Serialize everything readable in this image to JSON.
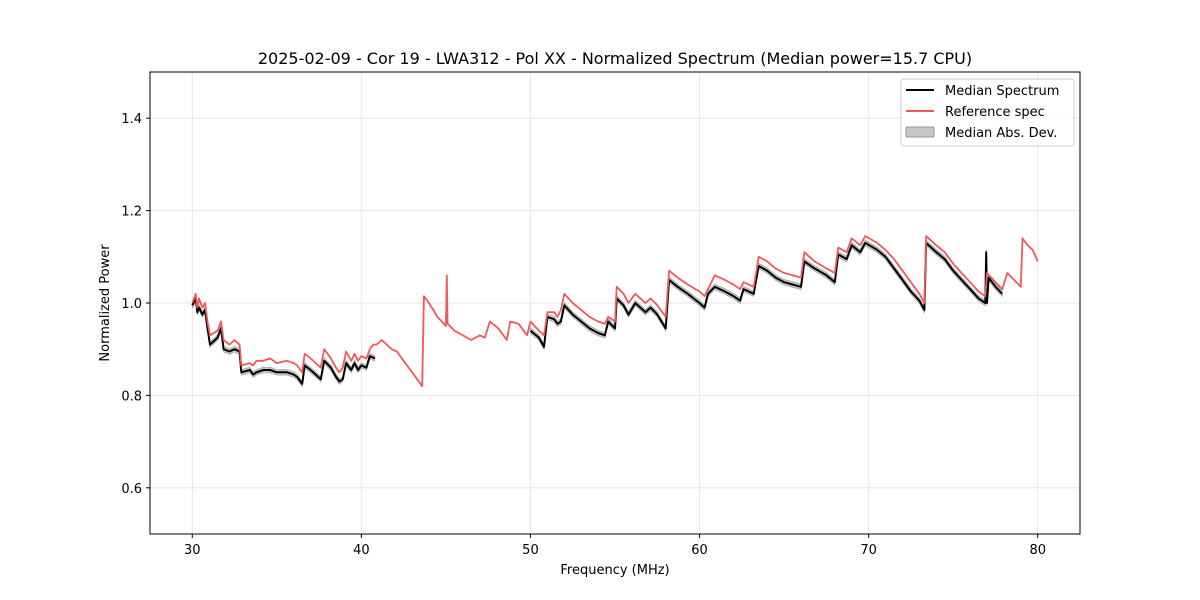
{
  "chart_data": {
    "type": "line",
    "title": "2025-02-09 - Cor 19 - LWA312 - Pol XX - Normalized Spectrum (Median power=15.7 CPU)",
    "xlabel": "Frequency (MHz)",
    "ylabel": "Normalized Power",
    "xlim": [
      27.5,
      82.5
    ],
    "ylim": [
      0.5,
      1.5
    ],
    "xticks": [
      30,
      40,
      50,
      60,
      70,
      80
    ],
    "yticks": [
      0.6,
      0.8,
      1.0,
      1.2,
      1.4
    ],
    "xtick_labels": [
      "30",
      "40",
      "50",
      "60",
      "70",
      "80"
    ],
    "ytick_labels": [
      "0.6",
      "0.8",
      "1.0",
      "1.2",
      "1.4"
    ],
    "grid": true,
    "legend_position": "top-right",
    "legend": [
      "Median Spectrum",
      "Reference spec",
      "Median Abs. Dev."
    ],
    "series": [
      {
        "name": "Reference spec",
        "color": "#f0595c",
        "segments": [
          [
            [
              30.0,
              1.0
            ],
            [
              30.2,
              1.02
            ],
            [
              30.3,
              0.99
            ],
            [
              30.4,
              1.01
            ],
            [
              30.6,
              0.99
            ],
            [
              30.75,
              1.0
            ],
            [
              30.9,
              0.96
            ],
            [
              31.05,
              0.93
            ],
            [
              31.5,
              0.94
            ],
            [
              31.7,
              0.96
            ],
            [
              31.85,
              0.92
            ],
            [
              32.2,
              0.91
            ],
            [
              32.5,
              0.92
            ],
            [
              32.8,
              0.91
            ],
            [
              32.9,
              0.865
            ],
            [
              33.4,
              0.87
            ],
            [
              33.6,
              0.865
            ],
            [
              33.8,
              0.875
            ],
            [
              34.2,
              0.875
            ],
            [
              34.6,
              0.88
            ],
            [
              35.0,
              0.87
            ],
            [
              35.6,
              0.875
            ],
            [
              36.0,
              0.87
            ],
            [
              36.2,
              0.865
            ],
            [
              36.5,
              0.85
            ],
            [
              36.65,
              0.89
            ],
            [
              37.0,
              0.88
            ],
            [
              37.3,
              0.87
            ],
            [
              37.6,
              0.86
            ],
            [
              37.8,
              0.9
            ],
            [
              38.2,
              0.88
            ],
            [
              38.5,
              0.86
            ],
            [
              38.7,
              0.85
            ],
            [
              38.9,
              0.86
            ],
            [
              39.1,
              0.895
            ],
            [
              39.4,
              0.875
            ],
            [
              39.6,
              0.89
            ],
            [
              39.8,
              0.875
            ],
            [
              40.0,
              0.885
            ],
            [
              40.3,
              0.88
            ],
            [
              40.5,
              0.9
            ],
            [
              40.7,
              0.91
            ],
            [
              40.9,
              0.91
            ],
            [
              41.2,
              0.92
            ],
            [
              41.5,
              0.91
            ],
            [
              41.8,
              0.9
            ],
            [
              42.1,
              0.895
            ],
            [
              42.4,
              0.88
            ],
            [
              42.7,
              0.865
            ],
            [
              43.0,
              0.85
            ],
            [
              43.3,
              0.835
            ],
            [
              43.6,
              0.82
            ],
            [
              43.7,
              1.015
            ],
            [
              44.0,
              1.0
            ],
            [
              44.5,
              0.97
            ],
            [
              45.0,
              0.95
            ],
            [
              45.05,
              1.06
            ],
            [
              45.1,
              0.955
            ],
            [
              45.5,
              0.94
            ],
            [
              46.0,
              0.93
            ],
            [
              46.5,
              0.92
            ],
            [
              47.0,
              0.93
            ],
            [
              47.3,
              0.925
            ],
            [
              47.6,
              0.96
            ],
            [
              48.1,
              0.945
            ],
            [
              48.6,
              0.92
            ],
            [
              48.8,
              0.96
            ],
            [
              49.3,
              0.955
            ],
            [
              49.8,
              0.93
            ],
            [
              50.0,
              0.96
            ],
            [
              50.5,
              0.94
            ],
            [
              50.8,
              0.93
            ],
            [
              51.0,
              0.98
            ],
            [
              51.4,
              0.98
            ],
            [
              51.6,
              0.97
            ],
            [
              51.8,
              0.985
            ],
            [
              52.0,
              1.02
            ],
            [
              52.5,
              1.0
            ],
            [
              53.0,
              0.985
            ],
            [
              53.5,
              0.97
            ],
            [
              54.0,
              0.96
            ],
            [
              54.4,
              0.955
            ],
            [
              54.6,
              0.97
            ],
            [
              55.0,
              0.96
            ],
            [
              55.1,
              1.035
            ],
            [
              55.5,
              1.02
            ],
            [
              55.8,
              1.0
            ],
            [
              56.2,
              1.02
            ],
            [
              56.8,
              1.0
            ],
            [
              57.1,
              1.01
            ],
            [
              57.5,
              0.995
            ],
            [
              58.0,
              0.97
            ],
            [
              58.2,
              1.07
            ],
            [
              58.7,
              1.055
            ],
            [
              59.3,
              1.04
            ],
            [
              60.0,
              1.025
            ],
            [
              60.3,
              1.015
            ],
            [
              60.5,
              1.03
            ],
            [
              60.9,
              1.06
            ],
            [
              61.5,
              1.05
            ],
            [
              62.0,
              1.04
            ],
            [
              62.4,
              1.03
            ],
            [
              62.6,
              1.045
            ],
            [
              63.2,
              1.035
            ],
            [
              63.5,
              1.1
            ],
            [
              64.0,
              1.09
            ],
            [
              64.5,
              1.075
            ],
            [
              65.0,
              1.065
            ],
            [
              65.5,
              1.06
            ],
            [
              66.0,
              1.055
            ],
            [
              66.2,
              1.11
            ],
            [
              66.8,
              1.09
            ],
            [
              67.5,
              1.075
            ],
            [
              68.0,
              1.065
            ],
            [
              68.2,
              1.12
            ],
            [
              68.7,
              1.11
            ],
            [
              69.0,
              1.14
            ],
            [
              69.5,
              1.125
            ],
            [
              69.8,
              1.145
            ],
            [
              70.5,
              1.13
            ],
            [
              71.0,
              1.115
            ],
            [
              71.5,
              1.095
            ],
            [
              72.0,
              1.07
            ],
            [
              72.5,
              1.045
            ],
            [
              73.0,
              1.02
            ],
            [
              73.3,
              1.0
            ],
            [
              73.4,
              1.145
            ],
            [
              74.0,
              1.125
            ],
            [
              74.5,
              1.11
            ],
            [
              75.0,
              1.085
            ],
            [
              75.5,
              1.065
            ],
            [
              76.0,
              1.045
            ],
            [
              76.5,
              1.025
            ],
            [
              76.9,
              1.015
            ],
            [
              77.0,
              1.065
            ],
            [
              77.5,
              1.045
            ],
            [
              77.9,
              1.03
            ],
            [
              78.2,
              1.065
            ],
            [
              78.6,
              1.05
            ],
            [
              79.0,
              1.035
            ],
            [
              79.1,
              1.14
            ],
            [
              79.4,
              1.125
            ],
            [
              79.7,
              1.115
            ],
            [
              80.0,
              1.09
            ]
          ]
        ]
      },
      {
        "name": "Median Spectrum",
        "color": "#000000",
        "segments": [
          [
            [
              30.0,
              0.995
            ],
            [
              30.2,
              1.01
            ],
            [
              30.3,
              0.98
            ],
            [
              30.4,
              0.99
            ],
            [
              30.6,
              0.975
            ],
            [
              30.75,
              0.985
            ],
            [
              30.9,
              0.945
            ],
            [
              31.05,
              0.91
            ],
            [
              31.5,
              0.925
            ],
            [
              31.7,
              0.945
            ],
            [
              31.85,
              0.9
            ],
            [
              32.2,
              0.895
            ],
            [
              32.5,
              0.9
            ],
            [
              32.8,
              0.895
            ],
            [
              32.9,
              0.85
            ],
            [
              33.4,
              0.855
            ],
            [
              33.6,
              0.845
            ],
            [
              33.8,
              0.85
            ],
            [
              34.2,
              0.855
            ],
            [
              34.6,
              0.855
            ],
            [
              35.0,
              0.85
            ],
            [
              35.6,
              0.85
            ],
            [
              36.0,
              0.845
            ],
            [
              36.2,
              0.84
            ],
            [
              36.5,
              0.825
            ],
            [
              36.65,
              0.865
            ],
            [
              37.0,
              0.855
            ],
            [
              37.3,
              0.845
            ],
            [
              37.6,
              0.835
            ],
            [
              37.8,
              0.875
            ],
            [
              38.2,
              0.86
            ],
            [
              38.5,
              0.84
            ],
            [
              38.7,
              0.83
            ],
            [
              38.9,
              0.835
            ],
            [
              39.1,
              0.87
            ],
            [
              39.4,
              0.855
            ],
            [
              39.6,
              0.87
            ],
            [
              39.8,
              0.855
            ],
            [
              40.0,
              0.865
            ],
            [
              40.3,
              0.86
            ],
            [
              40.5,
              0.885
            ],
            [
              40.8,
              0.88
            ]
          ],
          [
            [
              50.0,
              0.94
            ],
            [
              50.5,
              0.925
            ],
            [
              50.8,
              0.905
            ],
            [
              51.0,
              0.97
            ],
            [
              51.4,
              0.965
            ],
            [
              51.6,
              0.955
            ],
            [
              51.8,
              0.96
            ],
            [
              52.0,
              0.995
            ],
            [
              52.5,
              0.975
            ],
            [
              53.0,
              0.96
            ],
            [
              53.5,
              0.945
            ],
            [
              54.0,
              0.935
            ],
            [
              54.4,
              0.93
            ],
            [
              54.6,
              0.96
            ],
            [
              55.0,
              0.945
            ],
            [
              55.1,
              1.01
            ],
            [
              55.5,
              0.995
            ],
            [
              55.8,
              0.975
            ],
            [
              56.2,
              1.0
            ],
            [
              56.8,
              0.98
            ],
            [
              57.1,
              0.99
            ],
            [
              57.5,
              0.975
            ],
            [
              58.0,
              0.945
            ],
            [
              58.2,
              1.05
            ],
            [
              58.7,
              1.035
            ],
            [
              59.3,
              1.02
            ],
            [
              60.0,
              1.0
            ],
            [
              60.3,
              0.99
            ],
            [
              60.5,
              1.02
            ],
            [
              60.9,
              1.035
            ],
            [
              61.5,
              1.025
            ],
            [
              62.0,
              1.015
            ],
            [
              62.4,
              1.005
            ],
            [
              62.6,
              1.03
            ],
            [
              63.2,
              1.02
            ],
            [
              63.5,
              1.08
            ],
            [
              64.0,
              1.07
            ],
            [
              64.5,
              1.055
            ],
            [
              65.0,
              1.045
            ],
            [
              65.5,
              1.04
            ],
            [
              66.0,
              1.035
            ],
            [
              66.2,
              1.09
            ],
            [
              66.8,
              1.075
            ],
            [
              67.5,
              1.06
            ],
            [
              68.0,
              1.045
            ],
            [
              68.2,
              1.105
            ],
            [
              68.7,
              1.095
            ],
            [
              69.0,
              1.125
            ],
            [
              69.5,
              1.11
            ],
            [
              69.8,
              1.13
            ],
            [
              70.5,
              1.115
            ],
            [
              71.0,
              1.1
            ],
            [
              71.5,
              1.075
            ],
            [
              72.0,
              1.05
            ],
            [
              72.5,
              1.025
            ],
            [
              73.0,
              1.005
            ],
            [
              73.3,
              0.985
            ],
            [
              73.4,
              1.13
            ],
            [
              74.0,
              1.11
            ],
            [
              74.5,
              1.095
            ],
            [
              75.0,
              1.07
            ],
            [
              75.5,
              1.05
            ],
            [
              76.0,
              1.03
            ],
            [
              76.5,
              1.01
            ],
            [
              76.9,
              1.0
            ],
            [
              76.95,
              1.11
            ],
            [
              77.0,
              1.0
            ],
            [
              77.1,
              1.055
            ],
            [
              77.5,
              1.035
            ],
            [
              77.9,
              1.02
            ]
          ]
        ]
      }
    ]
  }
}
